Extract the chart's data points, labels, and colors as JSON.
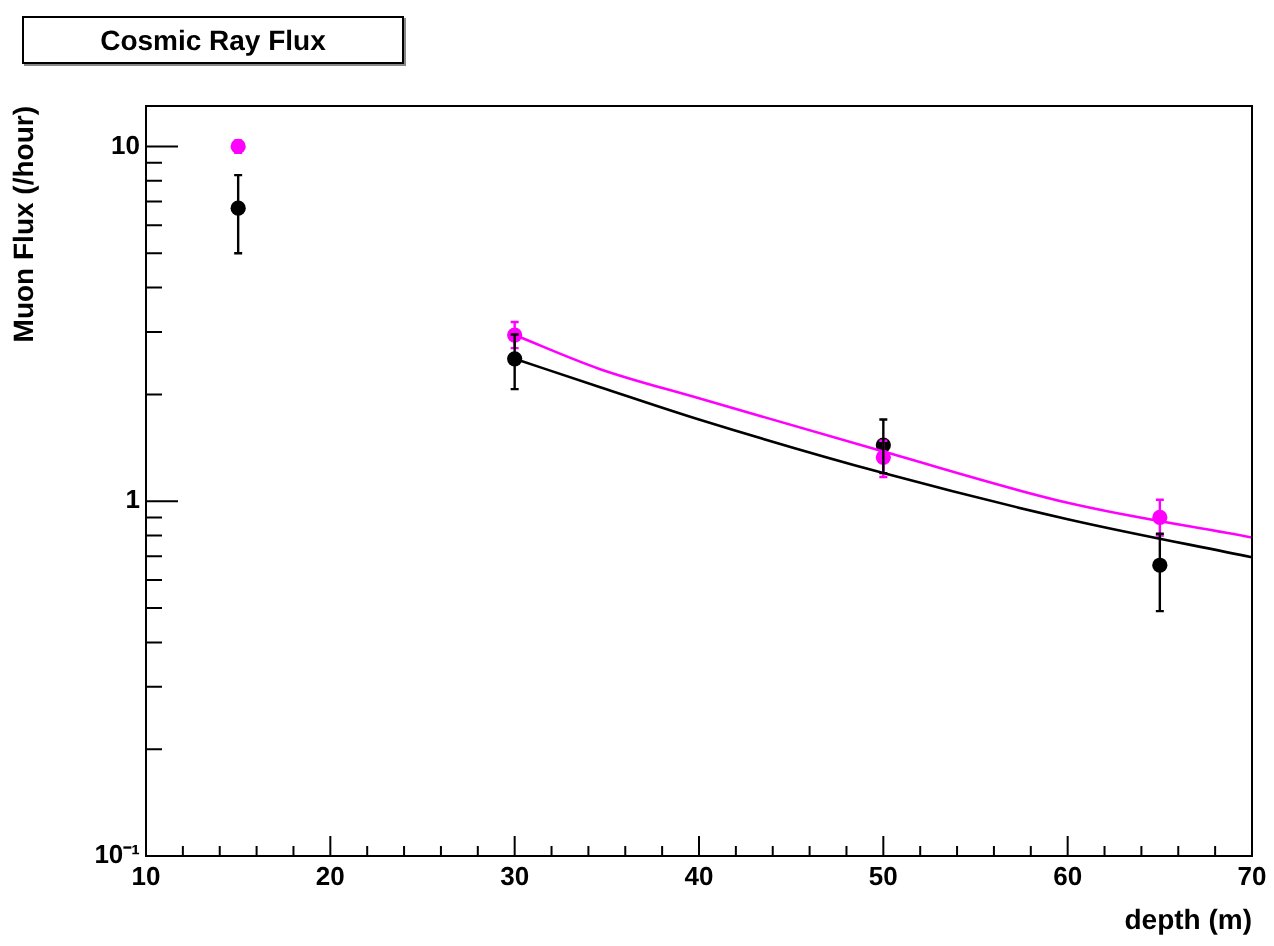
{
  "chart_data": {
    "type": "scatter",
    "title": "Cosmic Ray Flux",
    "xlabel": "depth (m)",
    "ylabel": "Muon Flux (/hour)",
    "log": "y",
    "xlim": [
      10,
      70
    ],
    "ylim": [
      0.1,
      13
    ],
    "xticks": [
      10,
      {
        "value": 12,
        "label": null
      },
      {
        "value": 14,
        "label": null
      },
      {
        "value": 16,
        "label": null
      },
      {
        "value": 18,
        "label": null
      },
      20,
      {
        "value": 22,
        "label": null
      },
      {
        "value": 24,
        "label": null
      },
      {
        "value": 26,
        "label": null
      },
      {
        "value": 28,
        "label": null
      },
      30,
      {
        "value": 32,
        "label": null
      },
      {
        "value": 34,
        "label": null
      },
      {
        "value": 36,
        "label": null
      },
      {
        "value": 38,
        "label": null
      },
      40,
      {
        "value": 42,
        "label": null
      },
      {
        "value": 44,
        "label": null
      },
      {
        "value": 46,
        "label": null
      },
      {
        "value": 48,
        "label": null
      },
      50,
      {
        "value": 52,
        "label": null
      },
      {
        "value": 54,
        "label": null
      },
      {
        "value": 56,
        "label": null
      },
      {
        "value": 58,
        "label": null
      },
      60,
      {
        "value": 62,
        "label": null
      },
      {
        "value": 64,
        "label": null
      },
      {
        "value": 66,
        "label": null
      },
      {
        "value": 68,
        "label": null
      },
      70
    ],
    "yticks": [
      {
        "value": 0.1,
        "label": "10⁻¹"
      },
      {
        "value": 0.2,
        "label": null
      },
      {
        "value": 0.3,
        "label": null
      },
      {
        "value": 0.4,
        "label": null
      },
      {
        "value": 0.5,
        "label": null
      },
      {
        "value": 0.6,
        "label": null
      },
      {
        "value": 0.7,
        "label": null
      },
      {
        "value": 0.8,
        "label": null
      },
      {
        "value": 0.9,
        "label": null
      },
      1,
      {
        "value": 2,
        "label": null
      },
      {
        "value": 3,
        "label": null
      },
      {
        "value": 4,
        "label": null
      },
      {
        "value": 5,
        "label": null
      },
      {
        "value": 6,
        "label": null
      },
      {
        "value": 7,
        "label": null
      },
      {
        "value": 8,
        "label": null
      },
      {
        "value": 9,
        "label": null
      },
      10
    ],
    "grid": false,
    "legend": false,
    "marker": "circle",
    "series": [
      {
        "type": "line",
        "color": "#ff00ff",
        "x": [
          30,
          34.6,
          40,
          50,
          60,
          70
        ],
        "values": [
          2.94,
          2.36,
          1.95,
          1.38,
          0.99,
          0.79
        ],
        "marker": "none"
      },
      {
        "type": "line",
        "color": "#000000",
        "x": [
          30,
          34.6,
          40,
          50,
          60,
          70
        ],
        "values": [
          2.52,
          2.1,
          1.7,
          1.2,
          0.89,
          0.695
        ],
        "marker": "none"
      },
      {
        "color": "#ff00ff",
        "x": [
          15,
          30,
          50,
          65
        ],
        "values": [
          10,
          2.94,
          1.33,
          0.9
        ],
        "errors": [
          [
            9.6,
            10.4
          ],
          [
            2.7,
            3.2
          ],
          [
            1.17,
            1.48
          ],
          [
            0.8,
            1.01
          ]
        ]
      },
      {
        "color": "#000000",
        "x": [
          15,
          30,
          50,
          65
        ],
        "values": [
          6.7,
          2.52,
          1.44,
          0.66
        ],
        "errors": [
          [
            5,
            8.3
          ],
          [
            2.07,
            2.95
          ],
          [
            1.2,
            1.7
          ],
          [
            0.49,
            0.81
          ]
        ]
      }
    ]
  }
}
